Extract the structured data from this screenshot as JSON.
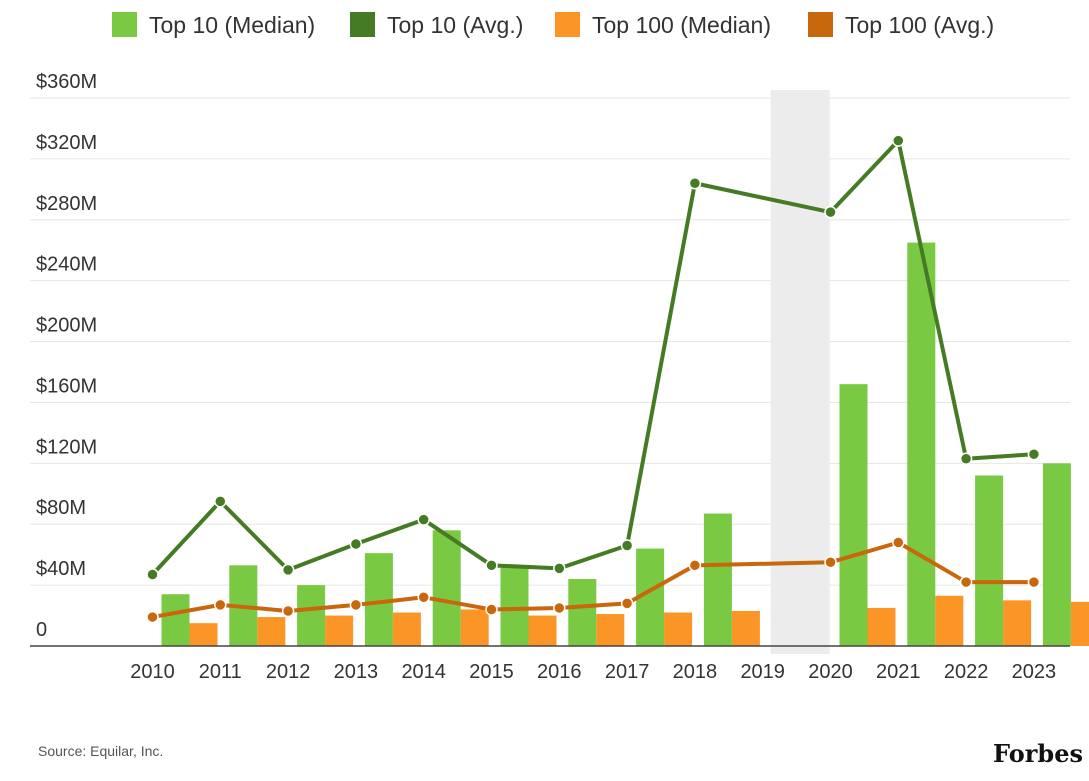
{
  "chart_data": {
    "type": "bar",
    "categories": [
      "2010",
      "2011",
      "2012",
      "2013",
      "2014",
      "2015",
      "2016",
      "2017",
      "2018",
      "2019",
      "2020",
      "2021",
      "2022",
      "2023"
    ],
    "series": [
      {
        "name": "Top 10 (Median)",
        "kind": "bar",
        "color": "#7ac943",
        "values": [
          34,
          53,
          40,
          61,
          76,
          52,
          44,
          64,
          87,
          null,
          172,
          265,
          112,
          120
        ]
      },
      {
        "name": "Top 10 (Avg.)",
        "kind": "line",
        "color": "#467b25",
        "values": [
          47,
          95,
          50,
          67,
          83,
          53,
          51,
          66,
          304,
          null,
          285,
          332,
          123,
          126
        ]
      },
      {
        "name": "Top 100 (Median)",
        "kind": "bar",
        "color": "#fb9525",
        "values": [
          15,
          19,
          20,
          22,
          24,
          20,
          21,
          22,
          23,
          null,
          25,
          33,
          30,
          29
        ]
      },
      {
        "name": "Top 100 (Avg.)",
        "kind": "line",
        "color": "#c8670c",
        "values": [
          19,
          27,
          23,
          27,
          32,
          24,
          25,
          28,
          53,
          null,
          55,
          68,
          42,
          42
        ]
      }
    ],
    "ylim": [
      0,
      360
    ],
    "yticks": [
      0,
      40,
      80,
      120,
      160,
      200,
      240,
      280,
      320,
      360
    ],
    "ytick_labels": [
      "0",
      "$40M",
      "$80M",
      "$120M",
      "$160M",
      "$200M",
      "$240M",
      "$280M",
      "$320M",
      "$360M"
    ],
    "highlight_category": "2019",
    "legend_position": "top",
    "grid": true
  },
  "footer": {
    "source": "Source:  Equilar, Inc.",
    "brand": "Forbes"
  }
}
